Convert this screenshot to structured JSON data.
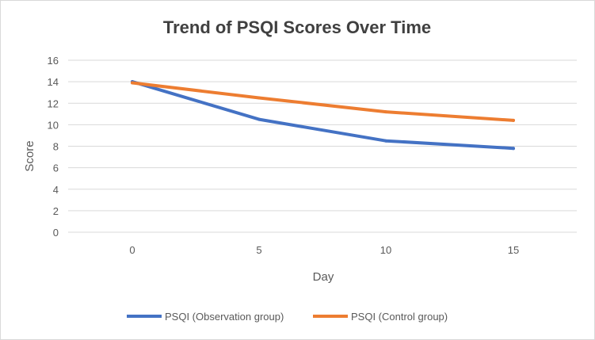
{
  "chart_data": {
    "type": "line",
    "title": "Trend of PSQI Scores Over Time",
    "xlabel": "Day",
    "ylabel": "Score",
    "x": [
      0,
      5,
      10,
      15
    ],
    "x_tick_labels": [
      "0",
      "5",
      "10",
      "15"
    ],
    "ylim": [
      0,
      16
    ],
    "y_ticks": [
      0,
      2,
      4,
      6,
      8,
      10,
      12,
      14,
      16
    ],
    "y_tick_labels": [
      "0",
      "2",
      "4",
      "6",
      "8",
      "10",
      "12",
      "14",
      "16"
    ],
    "grid": true,
    "legend_position": "bottom",
    "series": [
      {
        "name": "PSQI (Observation group)",
        "values": [
          14.0,
          10.5,
          8.5,
          7.8
        ],
        "color": "#4472c4"
      },
      {
        "name": "PSQI (Control group)",
        "values": [
          13.9,
          12.5,
          11.2,
          10.4
        ],
        "color": "#ed7d31"
      }
    ]
  }
}
